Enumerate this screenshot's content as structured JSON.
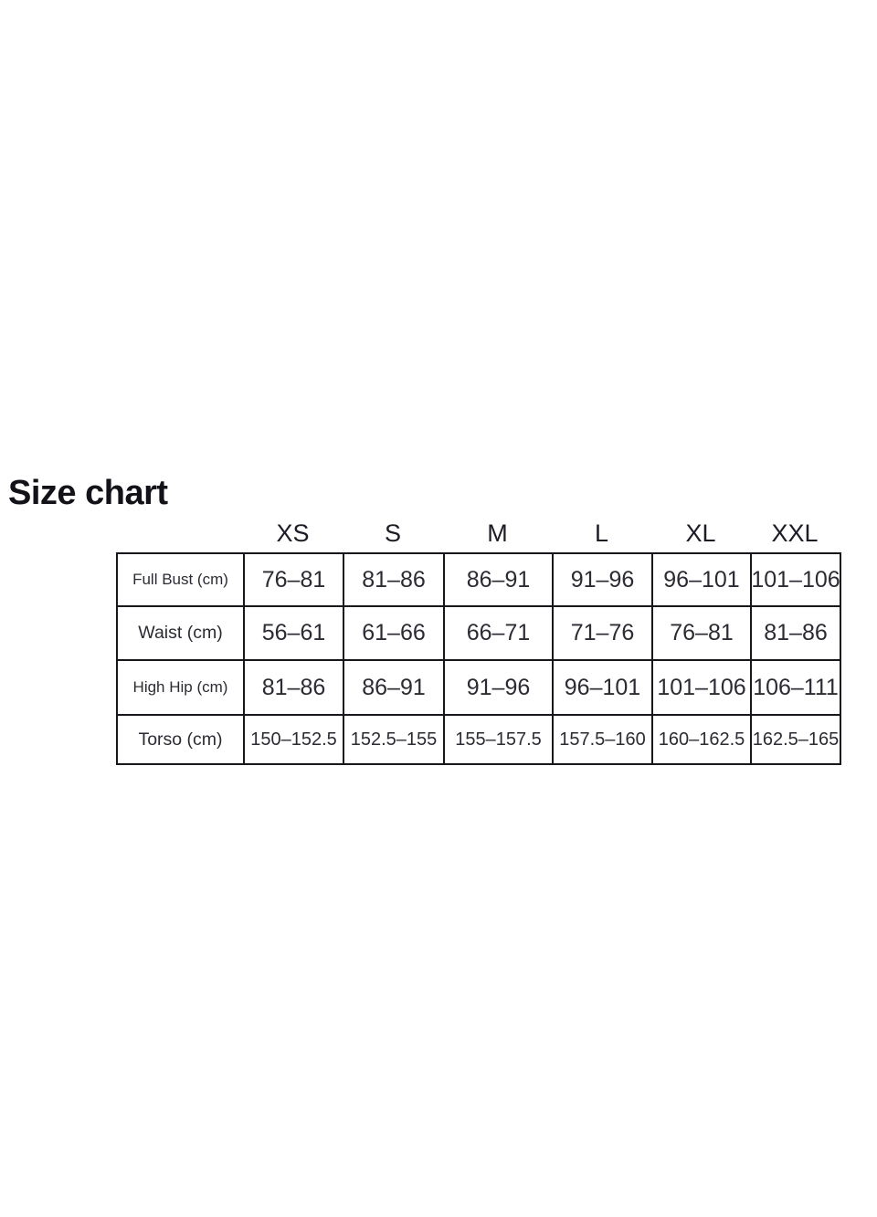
{
  "chart_data": {
    "type": "table",
    "title": "Size chart",
    "columns": [
      "",
      "XS",
      "S",
      "M",
      "L",
      "XL",
      "XXL"
    ],
    "rows": [
      [
        "Full Bust (cm)",
        "76–81",
        "81–86",
        "86–91",
        "91–96",
        "96–101",
        "101–106"
      ],
      [
        "Waist (cm)",
        "56–61",
        "61–66",
        "66–71",
        "71–76",
        "76–81",
        "81–86"
      ],
      [
        "High Hip (cm)",
        "81–86",
        "86–91",
        "91–96",
        "96–101",
        "101–106",
        "106–111"
      ],
      [
        "Torso (cm)",
        "150–152.5",
        "152.5–155",
        "155–157.5",
        "157.5–160",
        "160–162.5",
        "162.5–165"
      ]
    ],
    "layout": {
      "grid": "on",
      "border_color": "#17171b",
      "text_color": "#2b2b33",
      "title_color": "#121218",
      "background": "#ffffff"
    }
  }
}
